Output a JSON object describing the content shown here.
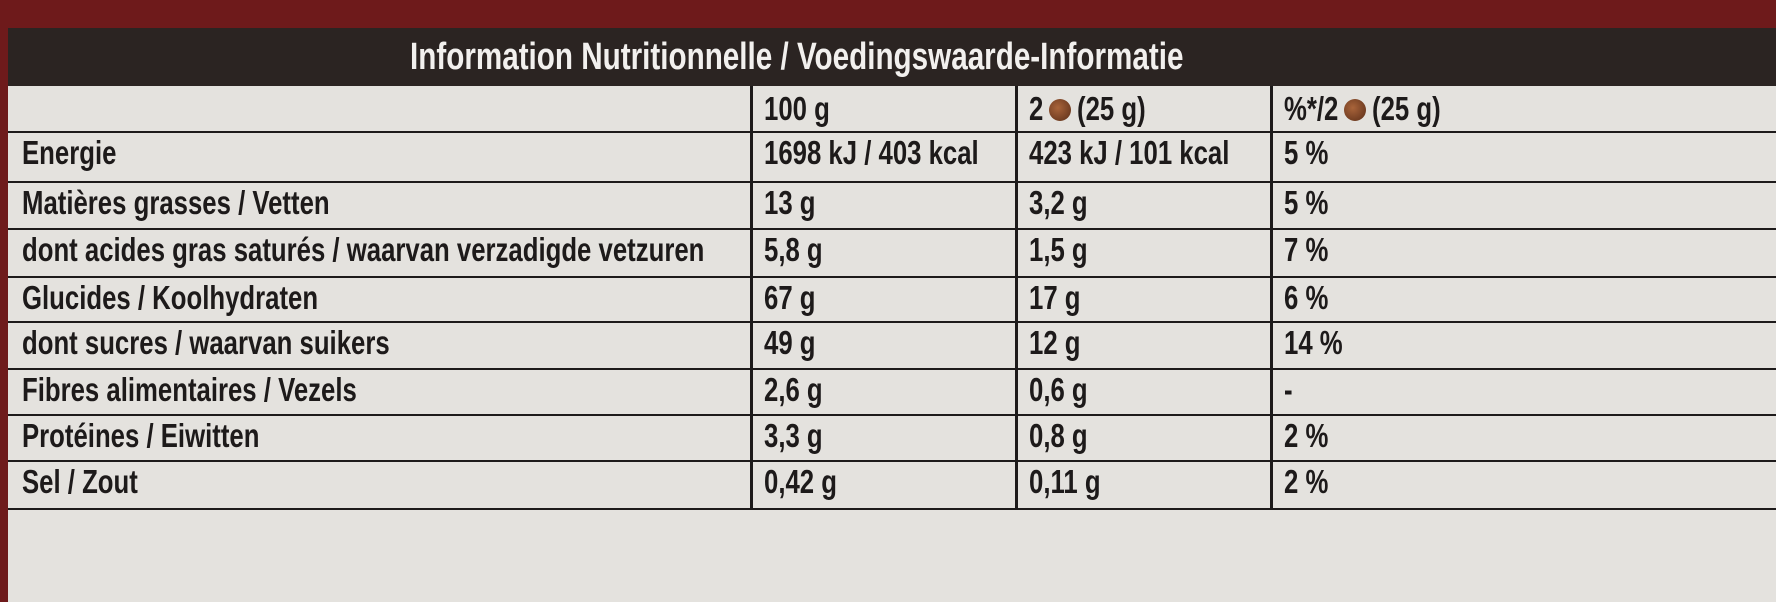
{
  "title": "Information Nutritionnelle / Voedingswaarde-Informatie",
  "table": {
    "columns": [
      {
        "text": "100 g"
      },
      {
        "before": "2",
        "after": "(25 g)"
      },
      {
        "before": "%*/2",
        "after": "(25 g)"
      }
    ],
    "rows": [
      [
        "Energie",
        "1698 kJ / 403 kcal",
        "423 kJ / 101 kcal",
        "5 %"
      ],
      [
        "Matières grasses / Vetten",
        "13 g",
        "3,2 g",
        "5 %"
      ],
      [
        "dont acides gras saturés / waarvan verzadigde vetzuren",
        "5,8 g",
        "1,5 g",
        "7 %"
      ],
      [
        "Glucides / Koolhydraten",
        "67 g",
        "17 g",
        "6 %"
      ],
      [
        "dont sucres / waarvan suikers",
        "49 g",
        "12 g",
        "14 %"
      ],
      [
        "Fibres alimentaires / Vezels",
        "2,6 g",
        "0,6 g",
        "-"
      ],
      [
        "Protéines / Eiwitten",
        "3,3 g",
        "0,8 g",
        "2 %"
      ],
      [
        "Sel / Zout",
        "0,42 g",
        "0,11 g",
        "2 %"
      ]
    ]
  }
}
